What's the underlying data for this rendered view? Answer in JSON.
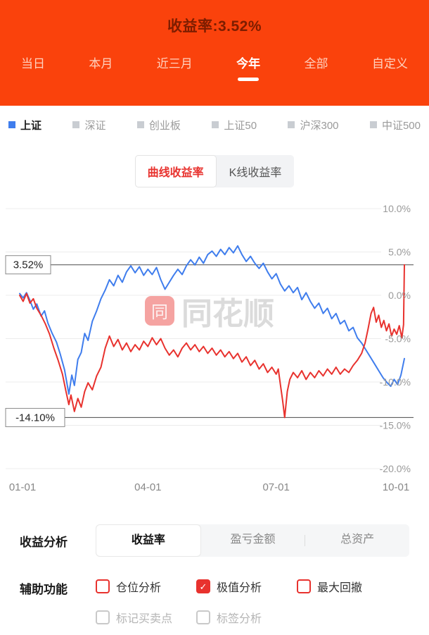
{
  "colors": {
    "header_background": "#fa420c",
    "accent_red": "#e8322e",
    "index_blue": "#3f7ded",
    "inactive_gray": "#c9cdd2"
  },
  "header": {
    "title": "收益率:3.52%",
    "active_tab": "今年",
    "tabs": [
      {
        "label": "当日"
      },
      {
        "label": "本月"
      },
      {
        "label": "近三月"
      },
      {
        "label": "今年"
      },
      {
        "label": "全部"
      },
      {
        "label": "自定义"
      }
    ]
  },
  "legend": {
    "items": [
      {
        "label": "上证",
        "color": "#3f7ded",
        "active": true
      },
      {
        "label": "深证",
        "color": "#c9cdd2",
        "active": false
      },
      {
        "label": "创业板",
        "color": "#c9cdd2",
        "active": false
      },
      {
        "label": "上证50",
        "color": "#c9cdd2",
        "active": false
      },
      {
        "label": "沪深300",
        "color": "#c9cdd2",
        "active": false
      },
      {
        "label": "中证500",
        "color": "#c9cdd2",
        "active": false
      }
    ]
  },
  "view_toggle": {
    "options": [
      {
        "label": "曲线收益率",
        "active": true
      },
      {
        "label": "K线收益率",
        "active": false
      }
    ]
  },
  "watermark": {
    "logo_text": "同",
    "brand_text": "同花顺"
  },
  "chart_data": {
    "type": "line",
    "title": "收益率:3.52%",
    "xlim": [
      0,
      9
    ],
    "ylim": [
      -20,
      10
    ],
    "grid": true,
    "x_ticks": [
      {
        "label": "01-01",
        "pos": 0
      },
      {
        "label": "04-01",
        "pos": 3
      },
      {
        "label": "07-01",
        "pos": 6
      },
      {
        "label": "10-01",
        "pos": 9
      }
    ],
    "y_ticks": [
      {
        "label": "10.0%",
        "value": 10
      },
      {
        "label": "5.0%",
        "value": 5
      },
      {
        "label": "0.0%",
        "value": 0
      },
      {
        "label": "-5.0%",
        "value": -5
      },
      {
        "label": "-10.0%",
        "value": -10
      },
      {
        "label": "-15.0%",
        "value": -15
      },
      {
        "label": "-20.0%",
        "value": -20
      }
    ],
    "annotations": [
      {
        "label": "3.52%",
        "value": 3.52
      },
      {
        "label": "-14.10%",
        "value": -14.1
      }
    ],
    "series": [
      {
        "name": "上证",
        "color": "#3f7ded",
        "points": [
          [
            0,
            0.2
          ],
          [
            0.08,
            -0.3
          ],
          [
            0.16,
            0.3
          ],
          [
            0.24,
            -0.6
          ],
          [
            0.32,
            -1.6
          ],
          [
            0.4,
            -1.0
          ],
          [
            0.5,
            -2.4
          ],
          [
            0.58,
            -1.8
          ],
          [
            0.66,
            -3.2
          ],
          [
            0.76,
            -4.4
          ],
          [
            0.86,
            -5.4
          ],
          [
            0.95,
            -6.8
          ],
          [
            1.05,
            -8.6
          ],
          [
            1.15,
            -11.4
          ],
          [
            1.22,
            -9.2
          ],
          [
            1.28,
            -10.4
          ],
          [
            1.36,
            -7.4
          ],
          [
            1.44,
            -6.6
          ],
          [
            1.52,
            -4.4
          ],
          [
            1.6,
            -5.2
          ],
          [
            1.7,
            -3.0
          ],
          [
            1.8,
            -1.8
          ],
          [
            1.9,
            -0.4
          ],
          [
            2.0,
            0.6
          ],
          [
            2.1,
            1.8
          ],
          [
            2.2,
            1.1
          ],
          [
            2.3,
            2.3
          ],
          [
            2.4,
            1.5
          ],
          [
            2.5,
            2.7
          ],
          [
            2.6,
            3.4
          ],
          [
            2.7,
            2.6
          ],
          [
            2.8,
            3.3
          ],
          [
            2.9,
            2.3
          ],
          [
            3.0,
            3.0
          ],
          [
            3.1,
            2.4
          ],
          [
            3.2,
            3.2
          ],
          [
            3.3,
            1.8
          ],
          [
            3.4,
            0.7
          ],
          [
            3.5,
            1.5
          ],
          [
            3.6,
            2.3
          ],
          [
            3.7,
            3.0
          ],
          [
            3.8,
            2.4
          ],
          [
            3.9,
            3.4
          ],
          [
            4.0,
            4.1
          ],
          [
            4.1,
            3.5
          ],
          [
            4.2,
            4.4
          ],
          [
            4.3,
            3.7
          ],
          [
            4.4,
            4.7
          ],
          [
            4.5,
            5.1
          ],
          [
            4.6,
            4.5
          ],
          [
            4.7,
            5.3
          ],
          [
            4.8,
            4.7
          ],
          [
            4.9,
            5.5
          ],
          [
            5.0,
            4.9
          ],
          [
            5.1,
            5.7
          ],
          [
            5.2,
            4.7
          ],
          [
            5.3,
            3.9
          ],
          [
            5.4,
            4.5
          ],
          [
            5.5,
            3.7
          ],
          [
            5.6,
            3.1
          ],
          [
            5.7,
            3.7
          ],
          [
            5.8,
            2.7
          ],
          [
            5.9,
            1.9
          ],
          [
            6.0,
            2.5
          ],
          [
            6.1,
            1.3
          ],
          [
            6.2,
            0.5
          ],
          [
            6.3,
            1.1
          ],
          [
            6.4,
            0.3
          ],
          [
            6.5,
            0.9
          ],
          [
            6.6,
            -0.5
          ],
          [
            6.7,
            0.3
          ],
          [
            6.8,
            -0.7
          ],
          [
            6.9,
            -1.5
          ],
          [
            7.0,
            -0.9
          ],
          [
            7.1,
            -2.1
          ],
          [
            7.2,
            -1.5
          ],
          [
            7.3,
            -2.7
          ],
          [
            7.4,
            -2.1
          ],
          [
            7.5,
            -3.3
          ],
          [
            7.6,
            -2.9
          ],
          [
            7.7,
            -4.1
          ],
          [
            7.8,
            -3.7
          ],
          [
            7.9,
            -4.9
          ],
          [
            8.0,
            -5.5
          ],
          [
            8.1,
            -6.3
          ],
          [
            8.2,
            -7.1
          ],
          [
            8.3,
            -7.9
          ],
          [
            8.4,
            -8.7
          ],
          [
            8.5,
            -9.5
          ],
          [
            8.6,
            -10.1
          ],
          [
            8.68,
            -10.5
          ],
          [
            8.76,
            -9.7
          ],
          [
            8.84,
            -10.3
          ],
          [
            8.92,
            -9.2
          ],
          [
            9.0,
            -7.3
          ]
        ]
      },
      {
        "name": "收益率",
        "color": "#e8322e",
        "points": [
          [
            0,
            0.0
          ],
          [
            0.08,
            -0.7
          ],
          [
            0.16,
            0.2
          ],
          [
            0.24,
            -0.9
          ],
          [
            0.32,
            -0.4
          ],
          [
            0.4,
            -1.5
          ],
          [
            0.5,
            -2.3
          ],
          [
            0.6,
            -3.3
          ],
          [
            0.7,
            -4.5
          ],
          [
            0.8,
            -6.1
          ],
          [
            0.9,
            -7.5
          ],
          [
            1.0,
            -9.1
          ],
          [
            1.08,
            -11.0
          ],
          [
            1.15,
            -12.6
          ],
          [
            1.2,
            -11.5
          ],
          [
            1.28,
            -13.4
          ],
          [
            1.36,
            -11.9
          ],
          [
            1.44,
            -12.9
          ],
          [
            1.52,
            -11.1
          ],
          [
            1.6,
            -10.1
          ],
          [
            1.7,
            -10.9
          ],
          [
            1.8,
            -9.3
          ],
          [
            1.9,
            -8.3
          ],
          [
            2.0,
            -6.1
          ],
          [
            2.1,
            -4.7
          ],
          [
            2.2,
            -5.9
          ],
          [
            2.3,
            -5.1
          ],
          [
            2.4,
            -6.3
          ],
          [
            2.5,
            -5.5
          ],
          [
            2.6,
            -6.5
          ],
          [
            2.7,
            -5.7
          ],
          [
            2.8,
            -6.3
          ],
          [
            2.9,
            -5.3
          ],
          [
            3.0,
            -5.9
          ],
          [
            3.1,
            -4.9
          ],
          [
            3.2,
            -5.7
          ],
          [
            3.3,
            -5.0
          ],
          [
            3.4,
            -6.1
          ],
          [
            3.5,
            -6.9
          ],
          [
            3.6,
            -6.3
          ],
          [
            3.7,
            -7.1
          ],
          [
            3.8,
            -6.1
          ],
          [
            3.9,
            -5.5
          ],
          [
            4.0,
            -6.3
          ],
          [
            4.1,
            -5.7
          ],
          [
            4.2,
            -6.5
          ],
          [
            4.3,
            -5.9
          ],
          [
            4.4,
            -6.7
          ],
          [
            4.5,
            -6.1
          ],
          [
            4.6,
            -6.9
          ],
          [
            4.7,
            -6.3
          ],
          [
            4.8,
            -7.1
          ],
          [
            4.9,
            -6.5
          ],
          [
            5.0,
            -7.3
          ],
          [
            5.1,
            -6.7
          ],
          [
            5.2,
            -7.7
          ],
          [
            5.3,
            -7.1
          ],
          [
            5.4,
            -8.1
          ],
          [
            5.5,
            -7.5
          ],
          [
            5.6,
            -8.5
          ],
          [
            5.7,
            -7.9
          ],
          [
            5.8,
            -8.9
          ],
          [
            5.9,
            -8.3
          ],
          [
            6.0,
            -9.1
          ],
          [
            6.05,
            -8.5
          ],
          [
            6.1,
            -10.3
          ],
          [
            6.15,
            -12.1
          ],
          [
            6.2,
            -14.1
          ],
          [
            6.26,
            -11.1
          ],
          [
            6.32,
            -9.7
          ],
          [
            6.4,
            -8.9
          ],
          [
            6.5,
            -9.5
          ],
          [
            6.6,
            -8.7
          ],
          [
            6.7,
            -9.7
          ],
          [
            6.8,
            -8.9
          ],
          [
            6.9,
            -9.5
          ],
          [
            7.0,
            -8.7
          ],
          [
            7.1,
            -9.3
          ],
          [
            7.2,
            -8.5
          ],
          [
            7.3,
            -9.1
          ],
          [
            7.4,
            -8.3
          ],
          [
            7.5,
            -9.1
          ],
          [
            7.6,
            -8.5
          ],
          [
            7.7,
            -8.9
          ],
          [
            7.8,
            -8.1
          ],
          [
            7.9,
            -7.5
          ],
          [
            8.0,
            -6.7
          ],
          [
            8.08,
            -5.5
          ],
          [
            8.15,
            -3.9
          ],
          [
            8.22,
            -2.1
          ],
          [
            8.28,
            -1.4
          ],
          [
            8.34,
            -3.1
          ],
          [
            8.4,
            -2.3
          ],
          [
            8.46,
            -3.7
          ],
          [
            8.52,
            -2.9
          ],
          [
            8.58,
            -4.1
          ],
          [
            8.64,
            -3.3
          ],
          [
            8.7,
            -4.7
          ],
          [
            8.76,
            -3.9
          ],
          [
            8.82,
            -4.5
          ],
          [
            8.88,
            -3.5
          ],
          [
            8.94,
            -4.9
          ],
          [
            8.98,
            -3.4
          ],
          [
            9.0,
            3.52
          ]
        ]
      }
    ]
  },
  "analysis": {
    "label": "收益分析",
    "tabs": [
      {
        "label": "收益率",
        "active": true
      },
      {
        "label": "盈亏金额",
        "active": false
      },
      {
        "label": "总资产",
        "active": false
      }
    ]
  },
  "aux": {
    "label": "辅助功能",
    "check_glyph": "✓",
    "row1": [
      {
        "label": "仓位分析",
        "checked": false
      },
      {
        "label": "极值分析",
        "checked": true
      },
      {
        "label": "最大回撤",
        "checked": false
      }
    ],
    "row2": [
      {
        "label": "标记买卖点",
        "checked": false
      },
      {
        "label": "标签分析",
        "checked": false
      }
    ]
  }
}
